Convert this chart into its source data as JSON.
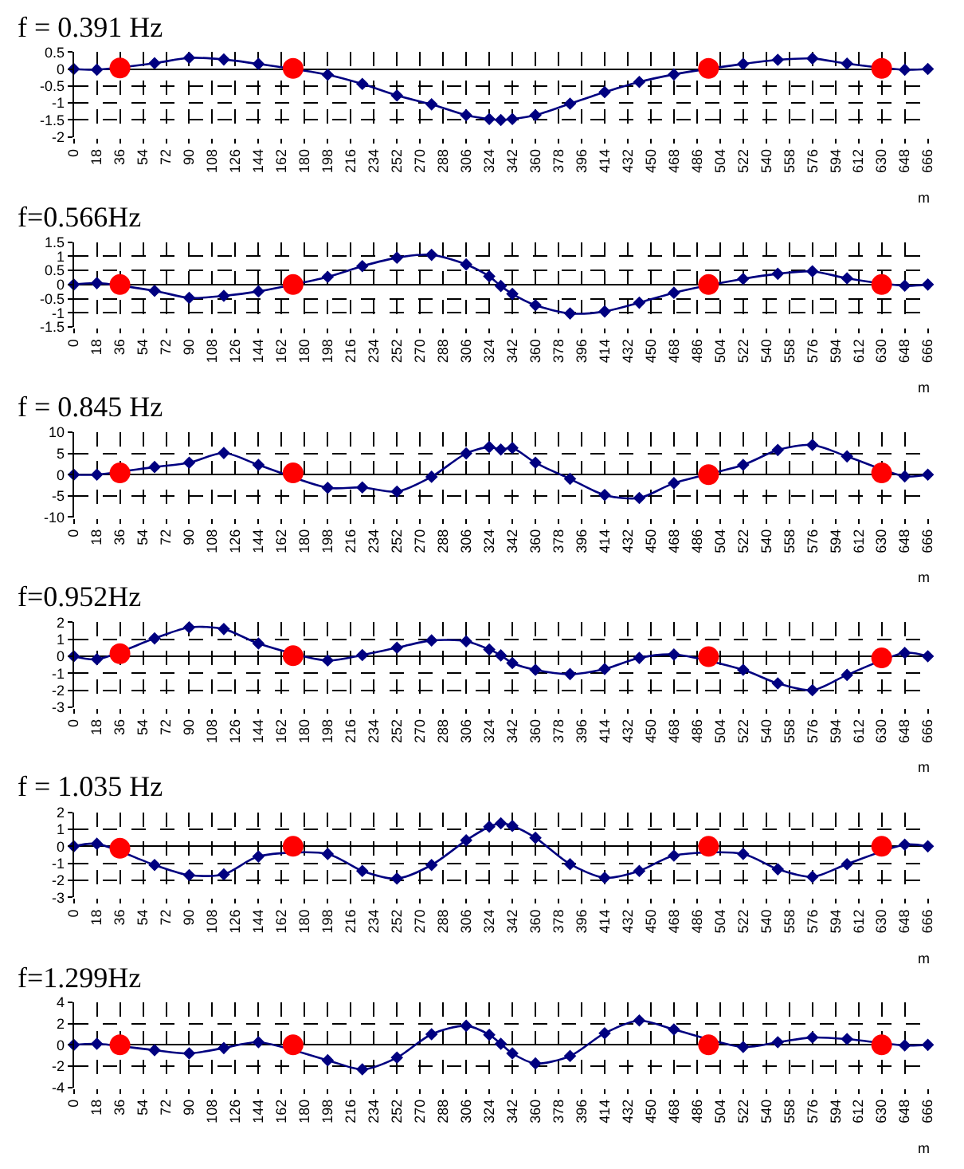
{
  "chart_data": [
    {
      "type": "line",
      "title": "f = 0.391 Hz",
      "xlabel": "m",
      "xlim": [
        0,
        666
      ],
      "xticks": [
        0,
        18,
        36,
        54,
        72,
        90,
        108,
        126,
        144,
        162,
        180,
        198,
        216,
        234,
        252,
        270,
        288,
        306,
        324,
        342,
        360,
        378,
        396,
        414,
        432,
        450,
        468,
        486,
        504,
        522,
        540,
        558,
        576,
        594,
        612,
        630,
        648,
        666
      ],
      "ylim": [
        -2,
        0.5
      ],
      "yticks": [
        -2,
        -1.5,
        -1,
        -0.5,
        0,
        0.5
      ],
      "grid": true,
      "series": [
        {
          "type": "line",
          "marker": "diamond",
          "color": "#000080",
          "x": [
            0,
            18,
            63,
            90,
            117,
            144,
            198,
            225,
            252,
            279,
            306,
            324,
            333,
            342,
            360,
            387,
            414,
            441,
            468,
            522,
            549,
            576,
            603,
            648,
            666
          ],
          "values": [
            0,
            -0.02,
            0.17,
            0.33,
            0.28,
            0.15,
            -0.17,
            -0.44,
            -0.78,
            -1.04,
            -1.36,
            -1.47,
            -1.5,
            -1.47,
            -1.36,
            -1.02,
            -0.68,
            -0.38,
            -0.16,
            0.15,
            0.27,
            0.31,
            0.16,
            -0.02,
            0
          ]
        },
        {
          "type": "scatter",
          "marker": "circle",
          "color": "#ff0000",
          "x": [
            36,
            171,
            495,
            630
          ],
          "values": [
            0.03,
            0.02,
            0.02,
            0.02
          ]
        }
      ]
    },
    {
      "type": "line",
      "title": "f=0.566Hz",
      "xlabel": "m",
      "xlim": [
        0,
        666
      ],
      "xticks": [
        0,
        18,
        36,
        54,
        72,
        90,
        108,
        126,
        144,
        162,
        180,
        198,
        216,
        234,
        252,
        270,
        288,
        306,
        324,
        342,
        360,
        378,
        396,
        414,
        432,
        450,
        468,
        486,
        504,
        522,
        540,
        558,
        576,
        594,
        612,
        630,
        648,
        666
      ],
      "ylim": [
        -1.5,
        1.5
      ],
      "yticks": [
        -1.5,
        -1,
        -0.5,
        0,
        0.5,
        1,
        1.5
      ],
      "grid": true,
      "series": [
        {
          "type": "line",
          "marker": "diamond",
          "color": "#000080",
          "x": [
            0,
            18,
            63,
            90,
            117,
            144,
            198,
            225,
            252,
            279,
            306,
            324,
            333,
            342,
            360,
            387,
            414,
            441,
            468,
            522,
            549,
            576,
            603,
            648,
            666
          ],
          "values": [
            0,
            0.05,
            -0.22,
            -0.47,
            -0.4,
            -0.24,
            0.27,
            0.65,
            0.95,
            1.05,
            0.71,
            0.29,
            -0.05,
            -0.33,
            -0.73,
            -1.02,
            -0.95,
            -0.64,
            -0.29,
            0.2,
            0.38,
            0.47,
            0.22,
            -0.04,
            0
          ]
        },
        {
          "type": "scatter",
          "marker": "circle",
          "color": "#ff0000",
          "x": [
            36,
            171,
            495,
            630
          ],
          "values": [
            0,
            0,
            0,
            0
          ]
        }
      ]
    },
    {
      "type": "line",
      "title": "f = 0.845 Hz",
      "xlabel": "m",
      "xlim": [
        0,
        666
      ],
      "xticks": [
        0,
        18,
        36,
        54,
        72,
        90,
        108,
        126,
        144,
        162,
        180,
        198,
        216,
        234,
        252,
        270,
        288,
        306,
        324,
        342,
        360,
        378,
        396,
        414,
        432,
        450,
        468,
        486,
        504,
        522,
        540,
        558,
        576,
        594,
        612,
        630,
        648,
        666
      ],
      "ylim": [
        -10,
        10
      ],
      "yticks": [
        -10,
        -5,
        0,
        5,
        10
      ],
      "grid": true,
      "series": [
        {
          "type": "line",
          "marker": "diamond",
          "color": "#000080",
          "x": [
            0,
            18,
            63,
            90,
            117,
            144,
            198,
            225,
            252,
            279,
            306,
            324,
            333,
            342,
            360,
            387,
            414,
            441,
            468,
            522,
            549,
            576,
            603,
            648,
            666
          ],
          "values": [
            0,
            0,
            1.8,
            2.8,
            5.1,
            2.3,
            -3.1,
            -3.0,
            -4.0,
            -0.5,
            5.0,
            6.5,
            5.9,
            6.3,
            2.8,
            -1.0,
            -4.8,
            -5.5,
            -2.0,
            2.3,
            5.8,
            7.0,
            4.3,
            -0.4,
            0
          ]
        },
        {
          "type": "scatter",
          "marker": "circle",
          "color": "#ff0000",
          "x": [
            36,
            171,
            495,
            630
          ],
          "values": [
            0.4,
            0.4,
            0,
            0.4
          ]
        }
      ]
    },
    {
      "type": "line",
      "title": "f=0.952Hz",
      "xlabel": "m",
      "xlim": [
        0,
        666
      ],
      "xticks": [
        0,
        18,
        36,
        54,
        72,
        90,
        108,
        126,
        144,
        162,
        180,
        198,
        216,
        234,
        252,
        270,
        288,
        306,
        324,
        342,
        360,
        378,
        396,
        414,
        432,
        450,
        468,
        486,
        504,
        522,
        540,
        558,
        576,
        594,
        612,
        630,
        648,
        666
      ],
      "ylim": [
        -3,
        2
      ],
      "yticks": [
        -3,
        -2,
        -1,
        0,
        1,
        2
      ],
      "grid": true,
      "series": [
        {
          "type": "line",
          "marker": "diamond",
          "color": "#000080",
          "x": [
            0,
            18,
            63,
            90,
            117,
            144,
            198,
            225,
            252,
            279,
            306,
            324,
            333,
            342,
            360,
            387,
            414,
            441,
            468,
            522,
            549,
            576,
            603,
            648,
            666
          ],
          "values": [
            0,
            -0.18,
            1.05,
            1.7,
            1.6,
            0.75,
            -0.25,
            0.07,
            0.5,
            0.93,
            0.88,
            0.4,
            0.05,
            -0.4,
            -0.8,
            -1.05,
            -0.75,
            -0.1,
            0.1,
            -0.8,
            -1.6,
            -2.0,
            -1.1,
            0.2,
            0
          ]
        },
        {
          "type": "scatter",
          "marker": "circle",
          "color": "#ff0000",
          "x": [
            36,
            171,
            495,
            630
          ],
          "values": [
            0.15,
            0.03,
            -0.03,
            -0.1
          ]
        }
      ]
    },
    {
      "type": "line",
      "title": "f = 1.035 Hz",
      "xlabel": "m",
      "xlim": [
        0,
        666
      ],
      "xticks": [
        0,
        18,
        36,
        54,
        72,
        90,
        108,
        126,
        144,
        162,
        180,
        198,
        216,
        234,
        252,
        270,
        288,
        306,
        324,
        342,
        360,
        378,
        396,
        414,
        432,
        450,
        468,
        486,
        504,
        522,
        540,
        558,
        576,
        594,
        612,
        630,
        648,
        666
      ],
      "ylim": [
        -3,
        2
      ],
      "yticks": [
        -3,
        -2,
        -1,
        0,
        1,
        2
      ],
      "grid": true,
      "series": [
        {
          "type": "line",
          "marker": "diamond",
          "color": "#000080",
          "x": [
            0,
            18,
            63,
            90,
            117,
            144,
            198,
            225,
            252,
            279,
            306,
            324,
            333,
            342,
            360,
            387,
            414,
            441,
            468,
            522,
            549,
            576,
            603,
            648,
            666
          ],
          "values": [
            0,
            0.15,
            -1.1,
            -1.7,
            -1.65,
            -0.6,
            -0.45,
            -1.45,
            -1.9,
            -1.1,
            0.35,
            1.15,
            1.35,
            1.2,
            0.5,
            -1.05,
            -1.85,
            -1.45,
            -0.55,
            -0.45,
            -1.35,
            -1.8,
            -1.05,
            0.1,
            0
          ]
        },
        {
          "type": "scatter",
          "marker": "circle",
          "color": "#ff0000",
          "x": [
            36,
            171,
            495,
            630
          ],
          "values": [
            -0.12,
            0,
            0,
            0
          ]
        }
      ]
    },
    {
      "type": "line",
      "title": "f=1.299Hz",
      "xlabel": "m",
      "xlim": [
        0,
        666
      ],
      "xticks": [
        0,
        18,
        36,
        54,
        72,
        90,
        108,
        126,
        144,
        162,
        180,
        198,
        216,
        234,
        252,
        270,
        288,
        306,
        324,
        342,
        360,
        378,
        396,
        414,
        432,
        450,
        468,
        486,
        504,
        522,
        540,
        558,
        576,
        594,
        612,
        630,
        648,
        666
      ],
      "ylim": [
        -4,
        4
      ],
      "yticks": [
        -4,
        -2,
        0,
        2,
        4
      ],
      "grid": true,
      "series": [
        {
          "type": "line",
          "marker": "diamond",
          "color": "#000080",
          "x": [
            0,
            18,
            63,
            90,
            117,
            144,
            198,
            225,
            252,
            279,
            306,
            324,
            333,
            342,
            360,
            387,
            414,
            441,
            468,
            522,
            549,
            576,
            603,
            648,
            666
          ],
          "values": [
            0,
            0.1,
            -0.5,
            -0.8,
            -0.3,
            0.25,
            -1.45,
            -2.3,
            -1.2,
            1.0,
            1.8,
            0.95,
            0.1,
            -0.8,
            -1.75,
            -1.05,
            1.1,
            2.3,
            1.45,
            -0.2,
            0.25,
            0.7,
            0.55,
            -0.05,
            0
          ]
        },
        {
          "type": "scatter",
          "marker": "circle",
          "color": "#ff0000",
          "x": [
            36,
            171,
            495,
            630
          ],
          "values": [
            0,
            0,
            0,
            0
          ]
        }
      ]
    }
  ]
}
